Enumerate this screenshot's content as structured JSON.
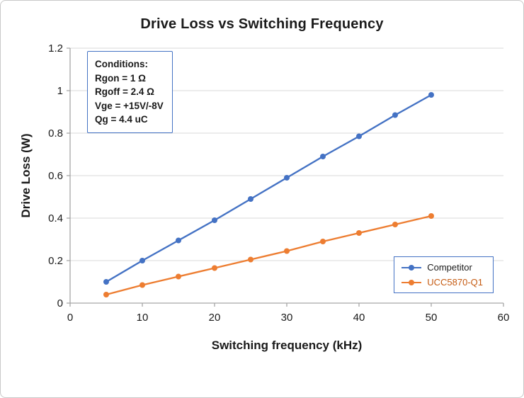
{
  "chart_data": {
    "type": "line",
    "title": "Drive Loss vs Switching Frequency",
    "xlabel": "Switching frequency (kHz)",
    "ylabel": "Drive Loss (W)",
    "xlim": [
      0,
      60
    ],
    "ylim": [
      0,
      1.2
    ],
    "grid": "horizontal",
    "legend_position": "inside-lower-right",
    "x": [
      5,
      10,
      15,
      20,
      25,
      30,
      35,
      40,
      45,
      50
    ],
    "series": [
      {
        "name": "Competitor",
        "color": "#4472C4",
        "label_color": "#1a1a1a",
        "values": [
          0.1,
          0.2,
          0.295,
          0.39,
          0.49,
          0.59,
          0.69,
          0.785,
          0.885,
          0.98
        ]
      },
      {
        "name": "UCC5870-Q1",
        "color": "#ED7D31",
        "label_color": "#C55A11",
        "values": [
          0.04,
          0.085,
          0.125,
          0.165,
          0.205,
          0.245,
          0.29,
          0.33,
          0.37,
          0.41
        ]
      }
    ],
    "xticks": [
      {
        "v": 0,
        "label": "0"
      },
      {
        "v": 10,
        "label": "10"
      },
      {
        "v": 20,
        "label": "20"
      },
      {
        "v": 30,
        "label": "30"
      },
      {
        "v": 40,
        "label": "40"
      },
      {
        "v": 50,
        "label": "50"
      },
      {
        "v": 60,
        "label": "60"
      }
    ],
    "yticks": [
      {
        "v": 0,
        "label": "0"
      },
      {
        "v": 0.2,
        "label": "0.2"
      },
      {
        "v": 0.4,
        "label": "0.4"
      },
      {
        "v": 0.6,
        "label": "0.6"
      },
      {
        "v": 0.8,
        "label": "0.8"
      },
      {
        "v": 1,
        "label": "1"
      },
      {
        "v": 1.2,
        "label": "1.2"
      }
    ]
  },
  "annotation": {
    "lines": [
      "Conditions:",
      "Rgon = 1 Ω",
      "Rgoff = 2.4 Ω",
      "Vge = +15V/-8V",
      "Qg = 4.4 uC"
    ]
  },
  "colors": {
    "grid": "#d9d9d9",
    "axis": "#a6a6a6",
    "annotation_border": "#4472C4",
    "legend_border": "#4472C4",
    "figure_border": "#c8c8c8",
    "text": "#1a1a1a"
  }
}
